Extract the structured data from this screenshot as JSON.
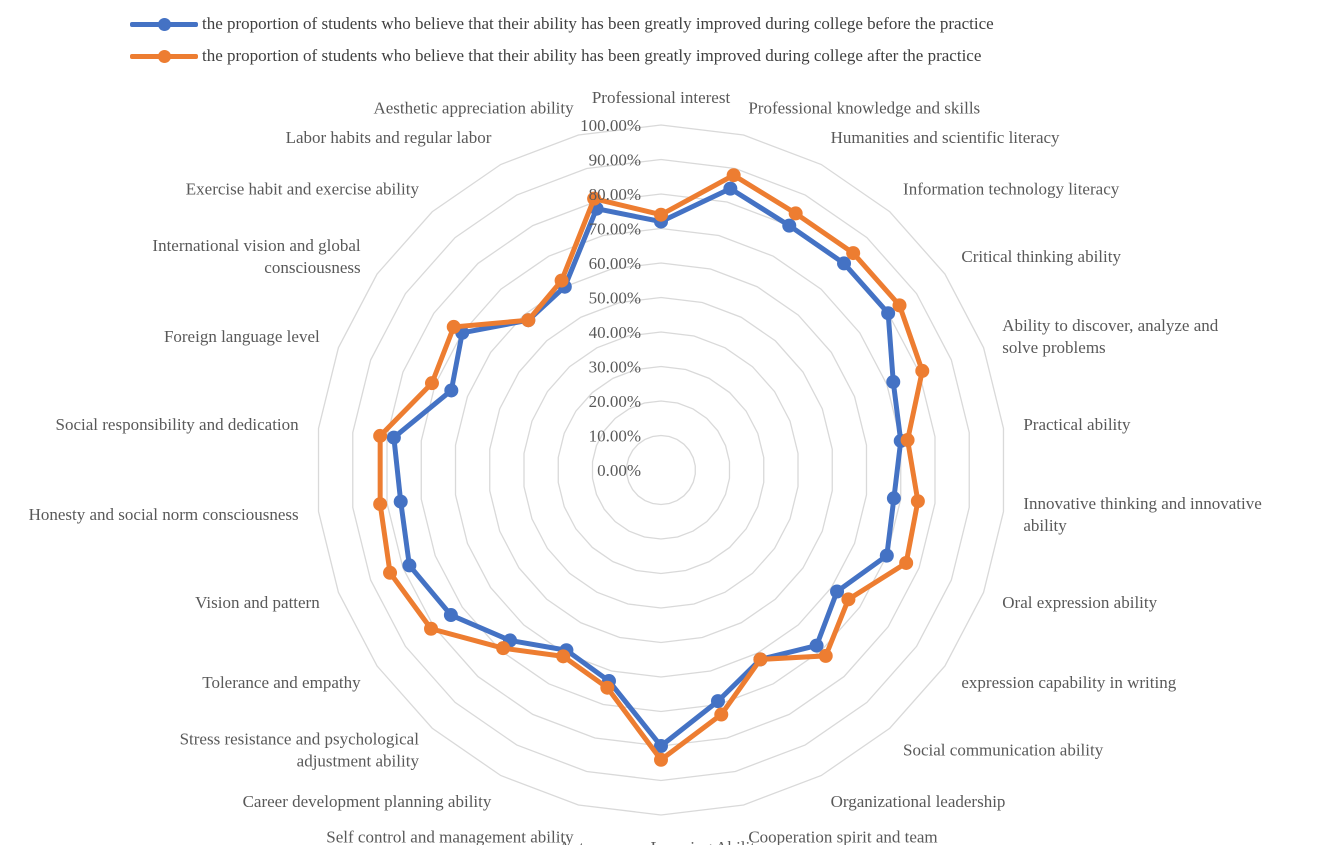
{
  "chart_data": {
    "type": "radar",
    "title": "",
    "categories": [
      "Professional interest",
      "Professional knowledge and skills",
      "Humanities and scientific literacy",
      "Information technology literacy",
      "Critical thinking ability",
      "Ability to discover, analyze and solve problems",
      "Practical ability",
      "Innovative thinking and innovative ability",
      "Oral expression ability",
      "expression capability in writing",
      "Social communication ability",
      "Organizational leadership",
      "Cooperation spirit and team consciousness",
      "Autonomous Learning Ability",
      "Self control and management ability",
      "Career development planning ability",
      "Stress resistance and psychological adjustment ability",
      "Tolerance and empathy",
      "Vision and pattern",
      "Honesty and social norm consciousness",
      "Social responsibility and dedication",
      "Foreign language level",
      "International vision and global consciousness",
      "Exercise habit and exercise ability",
      "Labor habits and regular labor",
      "Aesthetic appreciation ability"
    ],
    "series": [
      {
        "name": "the proportion of students who believe that their ability has been greatly improved during college before the practice",
        "color": "#4472C4",
        "values": [
          72,
          84,
          80,
          80,
          80,
          72,
          70,
          68,
          70,
          62,
          68,
          62,
          69,
          80,
          63,
          59,
          66,
          74,
          78,
          76,
          78,
          65,
          70,
          58,
          60,
          78
        ]
      },
      {
        "name": "the proportion of students who believe that their ability has been greatly improved during college after the practice",
        "color": "#ED7D31",
        "values": [
          74,
          88,
          84,
          84,
          84,
          81,
          72,
          75,
          76,
          66,
          72,
          62,
          73,
          84,
          65,
          61,
          69,
          81,
          84,
          82,
          82,
          71,
          73,
          58,
          62,
          81
        ]
      }
    ],
    "rlim": [
      0,
      100
    ],
    "ticks": [
      "0.00%",
      "10.00%",
      "20.00%",
      "30.00%",
      "40.00%",
      "50.00%",
      "60.00%",
      "70.00%",
      "80.00%",
      "90.00%",
      "100.00%"
    ],
    "legend_position": "top",
    "grid": true
  }
}
